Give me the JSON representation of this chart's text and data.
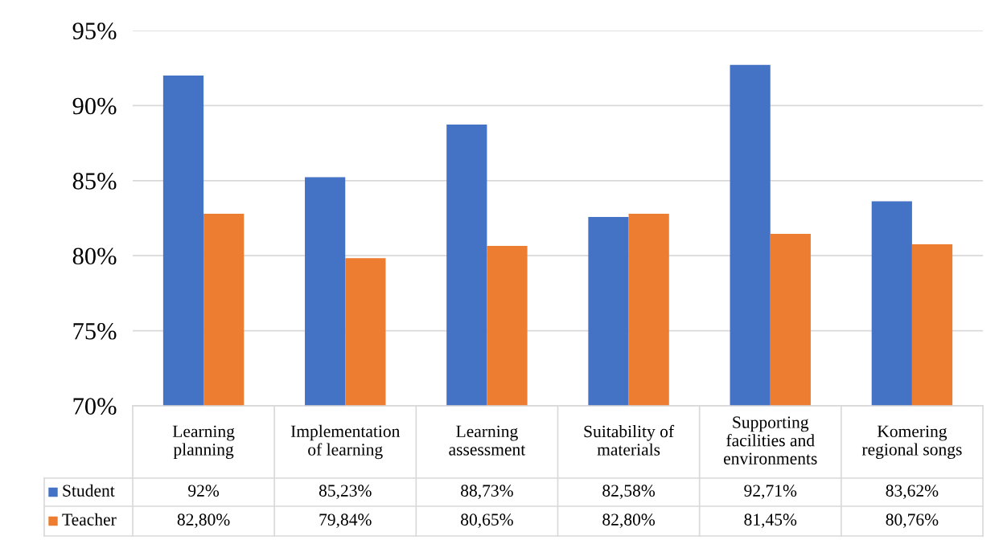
{
  "chart_data": {
    "type": "bar",
    "categories": [
      "Learning\nplanning",
      "Implementation\nof learning",
      "Learning\nassessment",
      "Suitability of\nmaterials",
      "Supporting\nfacilities and\nenvironments",
      "Komering\nregional songs"
    ],
    "series": [
      {
        "name": "Student",
        "color": "#4472c4",
        "values": [
          92,
          85.23,
          88.73,
          82.58,
          92.71,
          83.62
        ],
        "value_labels": [
          "92%",
          "85,23%",
          "88,73%",
          "82,58%",
          "92,71%",
          "83,62%"
        ]
      },
      {
        "name": "Teacher",
        "color": "#ed7d31",
        "values": [
          82.8,
          79.84,
          80.65,
          82.8,
          81.45,
          80.76
        ],
        "value_labels": [
          "82,80%",
          "79,84%",
          "80,65%",
          "82,80%",
          "81,45%",
          "80,76%"
        ]
      }
    ],
    "ylim": [
      70,
      95
    ],
    "yticks": [
      {
        "value": 70,
        "label": "70%"
      },
      {
        "value": 75,
        "label": "75%"
      },
      {
        "value": 80,
        "label": "80%"
      },
      {
        "value": 85,
        "label": "85%"
      },
      {
        "value": 90,
        "label": "90%"
      },
      {
        "value": 95,
        "label": "95%"
      }
    ],
    "grid": "y",
    "legend": "bottom"
  }
}
